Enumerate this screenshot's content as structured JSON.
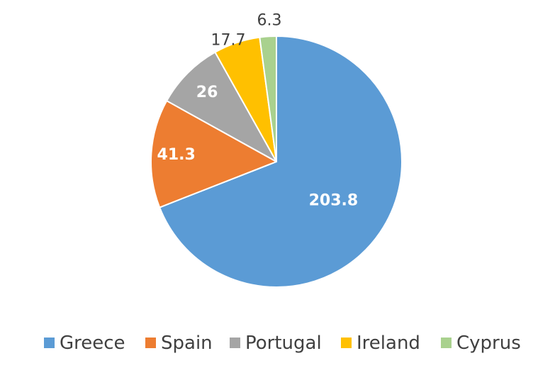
{
  "chart_data": {
    "type": "pie",
    "title": "",
    "categories": [
      "Greece",
      "Spain",
      "Portugal",
      "Ireland",
      "Cyprus"
    ],
    "values": [
      203.8,
      41.3,
      26,
      17.7,
      6.3
    ],
    "value_labels": [
      "203.8",
      "41.3",
      "26",
      "17.7",
      "6.3"
    ],
    "colors": [
      "#5B9BD5",
      "#ED7D31",
      "#A5A5A5",
      "#FFC000",
      "#A9D18E"
    ],
    "label_colors": [
      "#ffffff",
      "#ffffff",
      "#ffffff",
      "#404040",
      "#404040"
    ],
    "start_angle": "12 o'clock",
    "direction": "clockwise",
    "legend_position": "bottom"
  }
}
